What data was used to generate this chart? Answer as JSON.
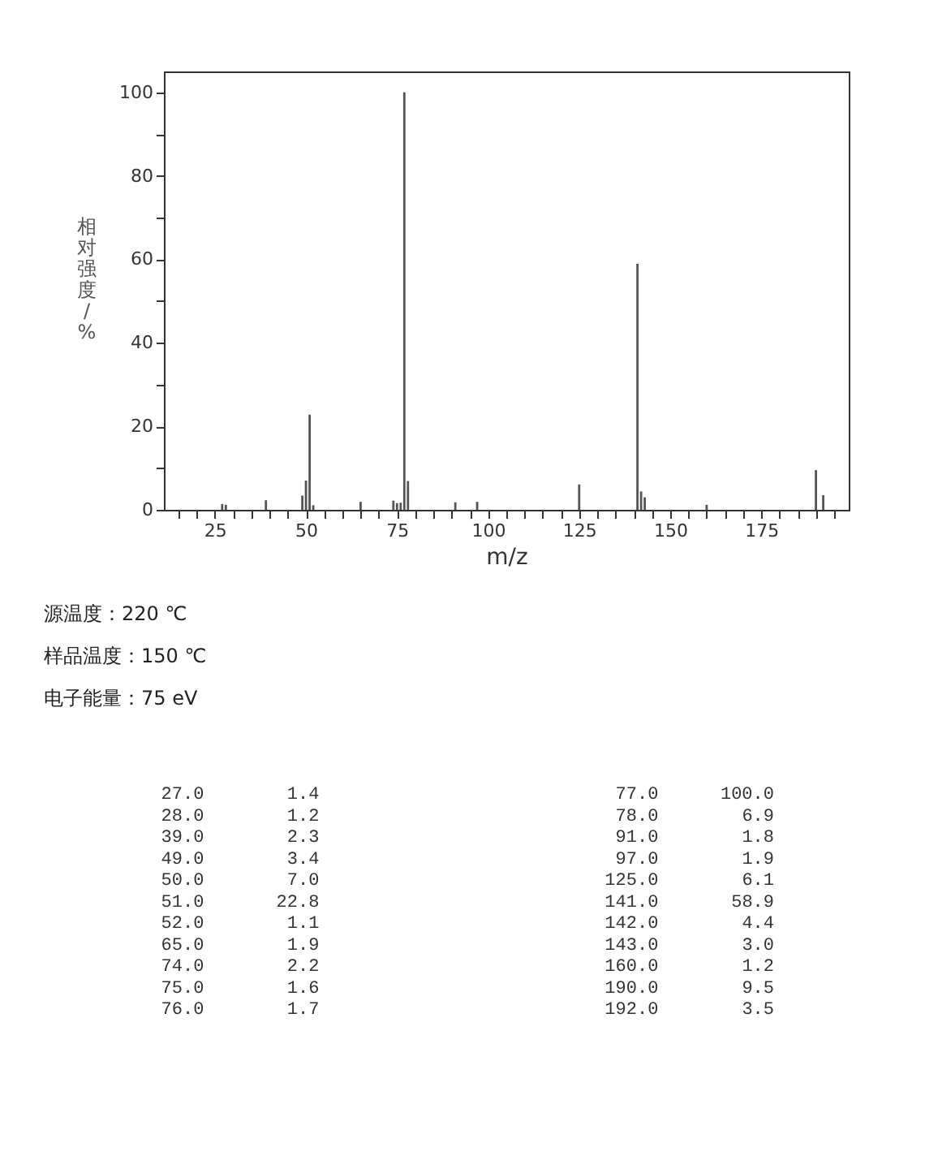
{
  "chart_data": {
    "type": "bar",
    "xlabel": "m/z",
    "ylabel": "相对强度/%",
    "x": [
      27.0,
      28.0,
      39.0,
      49.0,
      50.0,
      51.0,
      52.0,
      65.0,
      74.0,
      75.0,
      76.0,
      77.0,
      78.0,
      91.0,
      97.0,
      125.0,
      141.0,
      142.0,
      143.0,
      160.0,
      190.0,
      192.0
    ],
    "values": [
      1.4,
      1.2,
      2.3,
      3.4,
      7.0,
      22.8,
      1.1,
      1.9,
      2.2,
      1.6,
      1.7,
      100.0,
      6.9,
      1.8,
      1.9,
      6.1,
      58.9,
      4.4,
      3.0,
      1.2,
      9.5,
      3.5
    ],
    "color": "#555555",
    "xlim": [
      11,
      199
    ],
    "xticks": [
      {
        "value": 15,
        "label": null
      },
      {
        "value": 20,
        "label": null
      },
      25,
      {
        "value": 30,
        "label": null
      },
      {
        "value": 35,
        "label": null
      },
      {
        "value": 40,
        "label": null
      },
      {
        "value": 45,
        "label": null
      },
      50,
      {
        "value": 55,
        "label": null
      },
      {
        "value": 60,
        "label": null
      },
      {
        "value": 65,
        "label": null
      },
      {
        "value": 70,
        "label": null
      },
      75,
      {
        "value": 80,
        "label": null
      },
      {
        "value": 85,
        "label": null
      },
      {
        "value": 90,
        "label": null
      },
      {
        "value": 95,
        "label": null
      },
      100,
      {
        "value": 105,
        "label": null
      },
      {
        "value": 110,
        "label": null
      },
      {
        "value": 115,
        "label": null
      },
      {
        "value": 120,
        "label": null
      },
      125,
      {
        "value": 130,
        "label": null
      },
      {
        "value": 135,
        "label": null
      },
      {
        "value": 140,
        "label": null
      },
      {
        "value": 145,
        "label": null
      },
      150,
      {
        "value": 155,
        "label": null
      },
      {
        "value": 160,
        "label": null
      },
      {
        "value": 165,
        "label": null
      },
      {
        "value": 170,
        "label": null
      },
      175,
      {
        "value": 180,
        "label": null
      },
      {
        "value": 185,
        "label": null
      },
      {
        "value": 190,
        "label": null
      },
      {
        "value": 195,
        "label": null
      }
    ],
    "ylim": [
      0,
      105
    ],
    "yticks": [
      0,
      {
        "value": 10,
        "label": null
      },
      20,
      {
        "value": 30,
        "label": null
      },
      40,
      {
        "value": 50,
        "label": null
      },
      60,
      {
        "value": 70,
        "label": null
      },
      80,
      {
        "value": 90,
        "label": null
      },
      100
    ],
    "grid": false,
    "annotations": [
      "源温度：220 ℃",
      "样品温度：150 ℃",
      "电子能量：75 eV",
      "27.0",
      "1.4",
      "28.0",
      "1.2",
      "39.0",
      "2.3",
      "49.0",
      "3.4",
      "50.0",
      "7.0",
      "51.0",
      "22.8",
      "52.0",
      "1.1",
      "65.0",
      "1.9",
      "74.0",
      "2.2",
      "75.0",
      "1.6",
      "76.0",
      "1.7",
      "77.0",
      "100.0",
      "78.0",
      "6.9",
      "91.0",
      "1.8",
      "97.0",
      "1.9",
      "125.0",
      "6.1",
      "141.0",
      "58.9",
      "142.0",
      "4.4",
      "143.0",
      "3.0",
      "160.0",
      "1.2",
      "190.0",
      "9.5",
      "192.0",
      "3.5"
    ]
  }
}
